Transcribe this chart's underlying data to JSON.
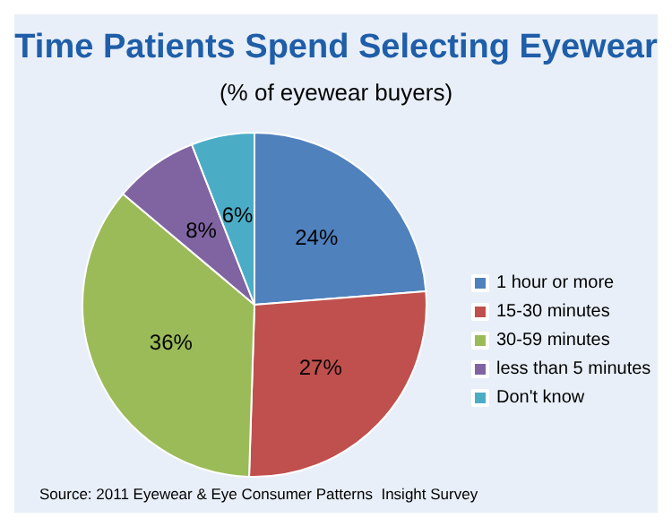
{
  "chart_data": {
    "type": "pie",
    "title": "Time Patients Spend Selecting Eyewear",
    "subtitle": "(% of eyewear buyers)",
    "categories": [
      "1 hour or more",
      "15-30 minutes",
      "30-59 minutes",
      "less than 5 minutes",
      "Don't know"
    ],
    "values": [
      24,
      27,
      36,
      8,
      6
    ],
    "colors": [
      "#4f81bd",
      "#c0504d",
      "#9bbb59",
      "#8064a2",
      "#4bacc6"
    ],
    "value_labels": [
      "24%",
      "27%",
      "36%",
      "8%",
      "6%"
    ],
    "legend": "right",
    "annotations": [
      "Source: 2011 Eyewear & Eye Consumer Patterns  Insight Survey"
    ]
  }
}
